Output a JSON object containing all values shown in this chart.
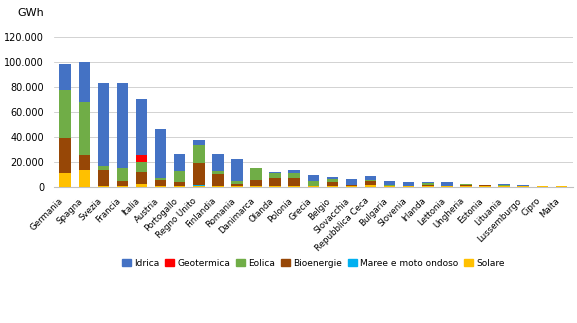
{
  "countries": [
    "Germania",
    "Spagna",
    "Svezia",
    "Francia",
    "Italia",
    "Austria",
    "Portogallo",
    "Regno Unito",
    "Finlandia",
    "Romania",
    "Danimarca",
    "Olanda",
    "Polonia",
    "Grecia",
    "Belgio",
    "Slovacchia",
    "Repubblica Ceca",
    "Bulgaria",
    "Slovenia",
    "Irlanda",
    "Lettonia",
    "Ungheria",
    "Estonia",
    "Lituania",
    "Lussemburgo",
    "Cipro",
    "Malta"
  ],
  "Idrica": [
    21000,
    32000,
    66000,
    68000,
    45000,
    39000,
    14000,
    4000,
    14000,
    17000,
    100,
    800,
    2000,
    5000,
    1200,
    4200,
    3000,
    3200,
    3300,
    600,
    2700,
    200,
    100,
    800,
    900,
    0,
    0
  ],
  "Geotermica": [
    0,
    0,
    0,
    0,
    5500,
    0,
    0,
    0,
    0,
    0,
    0,
    0,
    0,
    0,
    0,
    0,
    0,
    0,
    0,
    0,
    0,
    0,
    0,
    0,
    0,
    0,
    0
  ],
  "Eolica": [
    38000,
    42000,
    3500,
    10000,
    8000,
    2000,
    9000,
    14000,
    2000,
    2800,
    9500,
    4000,
    4500,
    3500,
    2500,
    300,
    400,
    700,
    300,
    1800,
    300,
    500,
    400,
    500,
    100,
    0,
    0
  ],
  "Bioenergie": [
    28000,
    12000,
    12500,
    4000,
    9500,
    4500,
    3000,
    18000,
    10000,
    1800,
    5500,
    6500,
    6500,
    500,
    3500,
    1200,
    3500,
    600,
    300,
    900,
    400,
    1400,
    800,
    500,
    400,
    100,
    100
  ],
  "Maree": [
    0,
    0,
    0,
    300,
    0,
    0,
    0,
    500,
    0,
    0,
    0,
    0,
    0,
    0,
    0,
    0,
    0,
    0,
    0,
    0,
    0,
    0,
    0,
    0,
    0,
    0,
    0
  ],
  "Solare": [
    11000,
    13500,
    700,
    400,
    2000,
    700,
    300,
    400,
    200,
    200,
    100,
    200,
    200,
    200,
    200,
    100,
    1200,
    100,
    100,
    100,
    100,
    100,
    100,
    100,
    100,
    50,
    50
  ],
  "colors": {
    "Idrica": "#4472C4",
    "Geotermica": "#FF0000",
    "Eolica": "#70AD47",
    "Bioenergie": "#974706",
    "Maree": "#00B0F0",
    "Solare": "#FFC000"
  },
  "stack_order": [
    "Solare",
    "Maree",
    "Bioenergie",
    "Eolica",
    "Geotermica",
    "Idrica"
  ],
  "ylabel": "GWh",
  "ylim": [
    0,
    130000
  ],
  "yticks": [
    0,
    20000,
    40000,
    60000,
    80000,
    100000,
    120000
  ],
  "ytick_labels": [
    "0",
    "20.000",
    "40.000",
    "60.000",
    "80.000",
    "100.000",
    "120.000"
  ],
  "legend_order": [
    "Idrica",
    "Geotermica",
    "Eolica",
    "Bioenergie",
    "Maree",
    "Solare"
  ],
  "legend_labels": [
    "Idrica",
    "Geotermica",
    "Eolica",
    "Bioenergie",
    "Maree e moto ondoso",
    "Solare"
  ],
  "bg_color": "#FFFFFF",
  "grid_color": "#C0C0C0"
}
